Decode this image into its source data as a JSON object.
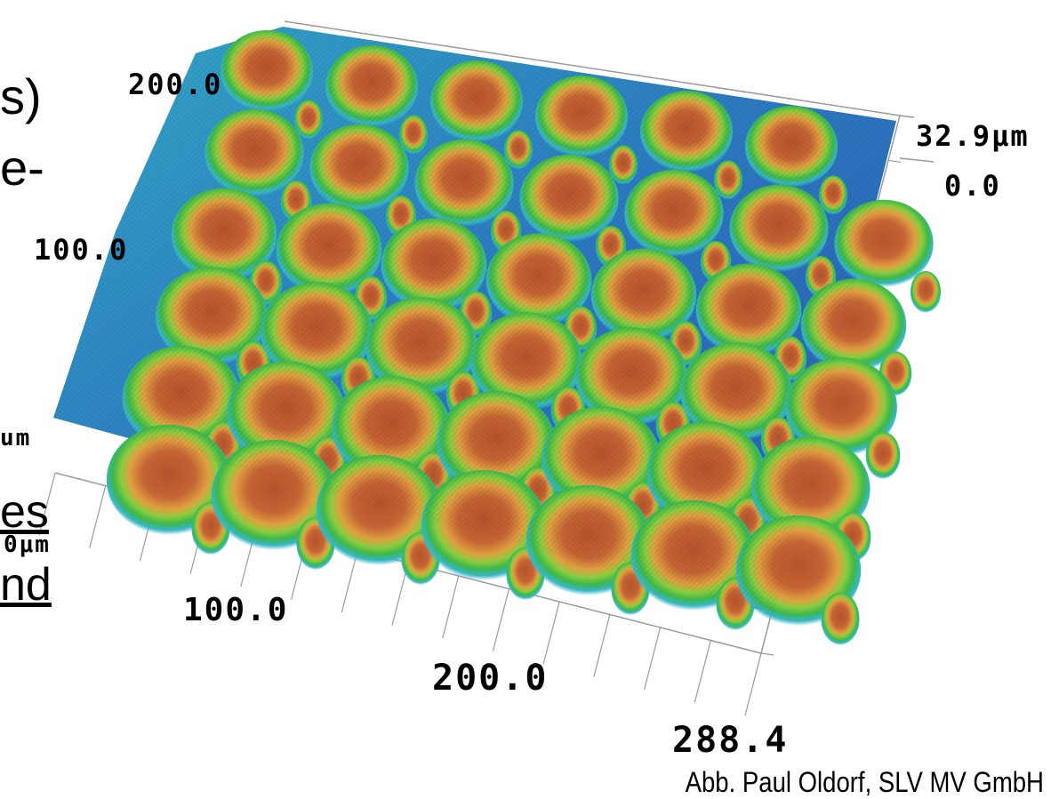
{
  "figure": {
    "left_text_fragments": [
      "s)",
      "e-",
      "es",
      "nd"
    ],
    "axis_labels": {
      "y_top": "200.0",
      "y_mid": "100.0",
      "y_unit_fragment": "um",
      "x_unit_fragment": "0μm",
      "x_100": "100.0",
      "x_200": "200.0",
      "x_max": "288.4",
      "z_max": "32.9μm",
      "z_min": "0.0"
    },
    "credit": "Abb. Paul Oldorf, SLV MV GmbH",
    "colors": {
      "peak": "#b8572c",
      "high": "#e0a040",
      "mid": "#3cb84a",
      "low": "#38b6c8",
      "valley": "#2a4fb0",
      "grid": "#9a9a9a"
    }
  }
}
